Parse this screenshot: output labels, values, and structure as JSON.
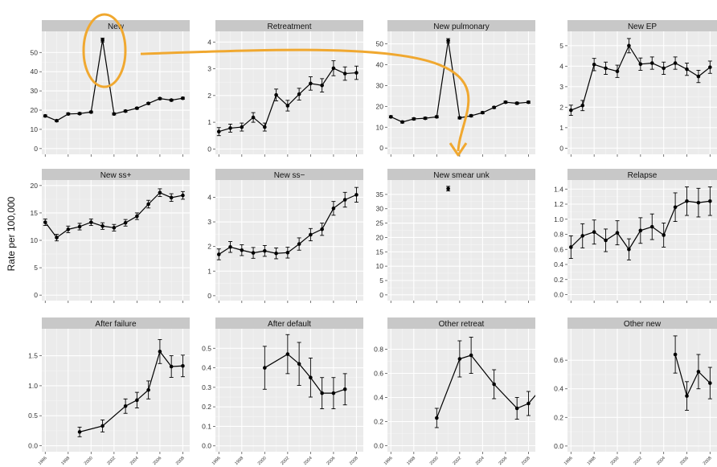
{
  "figure": {
    "ylabel": "Rate per 100,000",
    "highlight_color": "#F0A830",
    "panel_bg": "#EBEBEB",
    "strip_bg": "#C8C8C8",
    "line_color": "#000000"
  },
  "chart_data": [
    {
      "type": "line",
      "title": "New",
      "years": [
        1996,
        1997,
        1998,
        1999,
        2000,
        2001,
        2002,
        2003,
        2004,
        2005,
        2006,
        2007,
        2008
      ],
      "values": [
        17,
        14.5,
        18,
        18.2,
        19,
        56.5,
        18,
        19.5,
        21,
        23.5,
        26,
        25.2,
        26.2
      ],
      "err": [
        0.5,
        0.5,
        0.5,
        0.5,
        0.5,
        1,
        0.5,
        0.5,
        0.5,
        0.5,
        0.5,
        0.5,
        0.5
      ],
      "yticks": [
        "0",
        "10",
        "20",
        "30",
        "40",
        "50"
      ],
      "ylim": [
        -3,
        61
      ]
    },
    {
      "type": "line",
      "title": "Retreatment",
      "years": [
        1996,
        1997,
        1998,
        1999,
        2000,
        2001,
        2002,
        2003,
        2004,
        2005,
        2006,
        2007,
        2008
      ],
      "values": [
        0.65,
        0.78,
        0.82,
        1.18,
        0.82,
        2.02,
        1.62,
        2.05,
        2.45,
        2.38,
        3.02,
        2.82,
        2.85
      ],
      "err": [
        0.15,
        0.15,
        0.15,
        0.18,
        0.15,
        0.22,
        0.2,
        0.22,
        0.25,
        0.25,
        0.28,
        0.25,
        0.25
      ],
      "yticks": [
        "0",
        "1",
        "2",
        "3",
        "4"
      ],
      "ylim": [
        -0.2,
        4.4
      ]
    },
    {
      "type": "line",
      "title": "New pulmonary",
      "years": [
        1996,
        1997,
        1998,
        1999,
        2000,
        2001,
        2002,
        2003,
        2004,
        2005,
        2006,
        2007,
        2008
      ],
      "values": [
        15,
        12.5,
        14,
        14.3,
        15,
        51.5,
        14.5,
        15.5,
        17,
        19.5,
        22,
        21.5,
        22
      ],
      "err": [
        0.5,
        0.5,
        0.5,
        0.5,
        0.5,
        1,
        0.5,
        0.5,
        0.5,
        0.5,
        0.5,
        0.5,
        0.5
      ],
      "yticks": [
        "0",
        "10",
        "20",
        "30",
        "40",
        "50"
      ],
      "ylim": [
        -3,
        56
      ]
    },
    {
      "type": "line",
      "title": "New EP",
      "years": [
        1996,
        1997,
        1998,
        1999,
        2000,
        2001,
        2002,
        2003,
        2004,
        2005,
        2006,
        2007,
        2008
      ],
      "values": [
        1.85,
        2.08,
        4.08,
        3.9,
        3.75,
        5.0,
        4.1,
        4.15,
        3.9,
        4.15,
        3.85,
        3.5,
        3.95
      ],
      "err": [
        0.25,
        0.25,
        0.3,
        0.3,
        0.3,
        0.35,
        0.3,
        0.3,
        0.3,
        0.3,
        0.3,
        0.3,
        0.3
      ],
      "yticks": [
        "0",
        "1",
        "2",
        "3",
        "4",
        "5"
      ],
      "ylim": [
        -0.3,
        5.7
      ]
    },
    {
      "type": "line",
      "title": "New ss+",
      "years": [
        1996,
        1997,
        1998,
        1999,
        2000,
        2001,
        2002,
        2003,
        2004,
        2005,
        2006,
        2007,
        2008
      ],
      "values": [
        13.3,
        10.5,
        12,
        12.5,
        13.3,
        12.6,
        12.3,
        13.2,
        14.4,
        16.6,
        18.7,
        17.8,
        18.2
      ],
      "err": [
        0.6,
        0.6,
        0.6,
        0.6,
        0.6,
        0.6,
        0.6,
        0.6,
        0.6,
        0.7,
        0.7,
        0.7,
        0.7
      ],
      "yticks": [
        "0",
        "5",
        "10",
        "15",
        "20"
      ],
      "ylim": [
        -1,
        21
      ]
    },
    {
      "type": "line",
      "title": "New ss−",
      "years": [
        1996,
        1997,
        1998,
        1999,
        2000,
        2001,
        2002,
        2003,
        2004,
        2005,
        2006,
        2007,
        2008
      ],
      "values": [
        1.68,
        1.98,
        1.85,
        1.74,
        1.82,
        1.72,
        1.75,
        2.1,
        2.48,
        2.7,
        3.55,
        3.9,
        4.1
      ],
      "err": [
        0.22,
        0.22,
        0.22,
        0.22,
        0.22,
        0.22,
        0.22,
        0.25,
        0.25,
        0.25,
        0.28,
        0.3,
        0.3
      ],
      "yticks": [
        "0",
        "1",
        "2",
        "3",
        "4"
      ],
      "ylim": [
        -0.2,
        4.7
      ]
    },
    {
      "type": "line",
      "title": "New smear unk",
      "years": [
        2001
      ],
      "values": [
        37
      ],
      "err": [
        0.8
      ],
      "yticks": [
        "0",
        "5",
        "10",
        "15",
        "20",
        "25",
        "30",
        "35"
      ],
      "ylim": [
        -2,
        40
      ]
    },
    {
      "type": "line",
      "title": "Relapse",
      "years": [
        1996,
        1997,
        1998,
        1999,
        2000,
        2001,
        2002,
        2003,
        2004,
        2005,
        2006,
        2007,
        2008
      ],
      "values": [
        0.63,
        0.78,
        0.83,
        0.72,
        0.82,
        0.6,
        0.85,
        0.9,
        0.79,
        1.16,
        1.24,
        1.22,
        1.24
      ],
      "err": [
        0.15,
        0.16,
        0.16,
        0.15,
        0.16,
        0.14,
        0.17,
        0.17,
        0.16,
        0.19,
        0.19,
        0.19,
        0.19
      ],
      "yticks": [
        "0.0",
        "0.2",
        "0.4",
        "0.6",
        "0.8",
        "1.0",
        "1.2",
        "1.4"
      ],
      "ylim": [
        -0.08,
        1.52
      ]
    },
    {
      "type": "line",
      "title": "After failure",
      "years": [
        1999,
        2001,
        2003,
        2004,
        2005,
        2006,
        2007,
        2008
      ],
      "values": [
        0.23,
        0.33,
        0.66,
        0.76,
        0.93,
        1.57,
        1.32,
        1.33
      ],
      "err": [
        0.08,
        0.1,
        0.12,
        0.13,
        0.15,
        0.2,
        0.18,
        0.18
      ],
      "yticks": [
        "0.0",
        "0.5",
        "1.0",
        "1.5"
      ],
      "ylim": [
        -0.1,
        1.95
      ]
    },
    {
      "type": "line",
      "title": "After default",
      "years": [
        2000,
        2002,
        2003,
        2004,
        2005,
        2006,
        2007
      ],
      "values": [
        0.4,
        0.47,
        0.42,
        0.35,
        0.27,
        0.27,
        0.29
      ],
      "err": [
        0.11,
        0.1,
        0.11,
        0.1,
        0.08,
        0.08,
        0.08
      ],
      "yticks": [
        "0.0",
        "0.1",
        "0.2",
        "0.3",
        "0.4",
        "0.5"
      ],
      "ylim": [
        -0.03,
        0.6
      ]
    },
    {
      "type": "line",
      "title": "Other retreat",
      "years": [
        2000,
        2002,
        2003,
        2005,
        2007,
        2008,
        2009
      ],
      "values": [
        0.23,
        0.72,
        0.75,
        0.51,
        0.31,
        0.35,
        0.46
      ],
      "err": [
        0.08,
        0.15,
        0.15,
        0.12,
        0.09,
        0.1,
        0.1
      ],
      "yticks": [
        "0.0",
        "0.2",
        "0.4",
        "0.6",
        "0.8"
      ],
      "ylim": [
        -0.05,
        0.97
      ]
    },
    {
      "type": "line",
      "title": "Other new",
      "years": [
        2005,
        2006,
        2007,
        2008
      ],
      "values": [
        0.64,
        0.35,
        0.52,
        0.44
      ],
      "err": [
        0.13,
        0.1,
        0.12,
        0.11
      ],
      "yticks": [
        "0.0",
        "0.2",
        "0.4",
        "0.6"
      ],
      "ylim": [
        -0.04,
        0.82
      ]
    }
  ],
  "xaxis": {
    "ticks": [
      1996,
      1998,
      2000,
      2002,
      2004,
      2006,
      2008
    ],
    "tick_labels": [
      "1996",
      "1998",
      "2000",
      "2002",
      "2004",
      "2006",
      "2008"
    ]
  }
}
